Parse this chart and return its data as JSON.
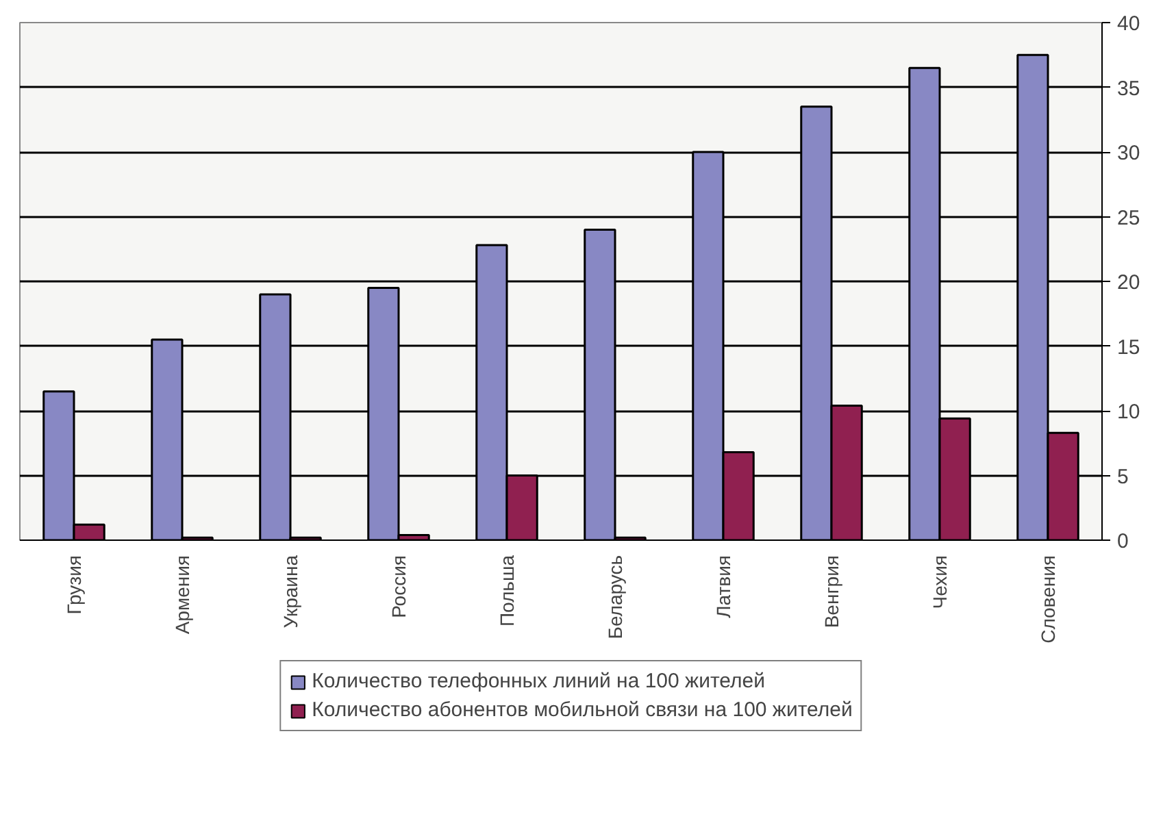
{
  "chart_data": {
    "type": "bar",
    "categories": [
      "Грузия",
      "Армения",
      "Украина",
      "Россия",
      "Польша",
      "Беларусь",
      "Латвия",
      "Венгрия",
      "Чехия",
      "Словения"
    ],
    "series": [
      {
        "name": "Количество телефонных линий на 100 жителей",
        "color": "#8888c4",
        "values": [
          11.5,
          15.5,
          19,
          19.5,
          22.8,
          24,
          30,
          33.5,
          36.5,
          37.5
        ]
      },
      {
        "name": "Количество абонентов мобильной связи на 100 жителей",
        "color": "#902050",
        "values": [
          1.2,
          0.2,
          0.2,
          0.4,
          5,
          0.2,
          6.8,
          10.4,
          9.4,
          8.3
        ]
      }
    ],
    "ylim": [
      0,
      40
    ],
    "yticks": [
      0,
      5,
      10,
      15,
      20,
      25,
      30,
      35,
      40
    ],
    "grid": "y",
    "legend": "bottom"
  }
}
